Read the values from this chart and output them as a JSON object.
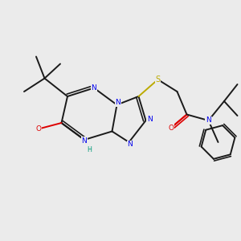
{
  "bg_color": "#ebebeb",
  "bond_color": "#1a1a1a",
  "N_color": "#0000ee",
  "O_color": "#dd0000",
  "S_color": "#bbaa00",
  "H_color": "#009977",
  "line_width": 1.4,
  "figsize": [
    3.0,
    3.0
  ],
  "dpi": 100,
  "xlim": [
    0,
    10
  ],
  "ylim": [
    0,
    10
  ]
}
